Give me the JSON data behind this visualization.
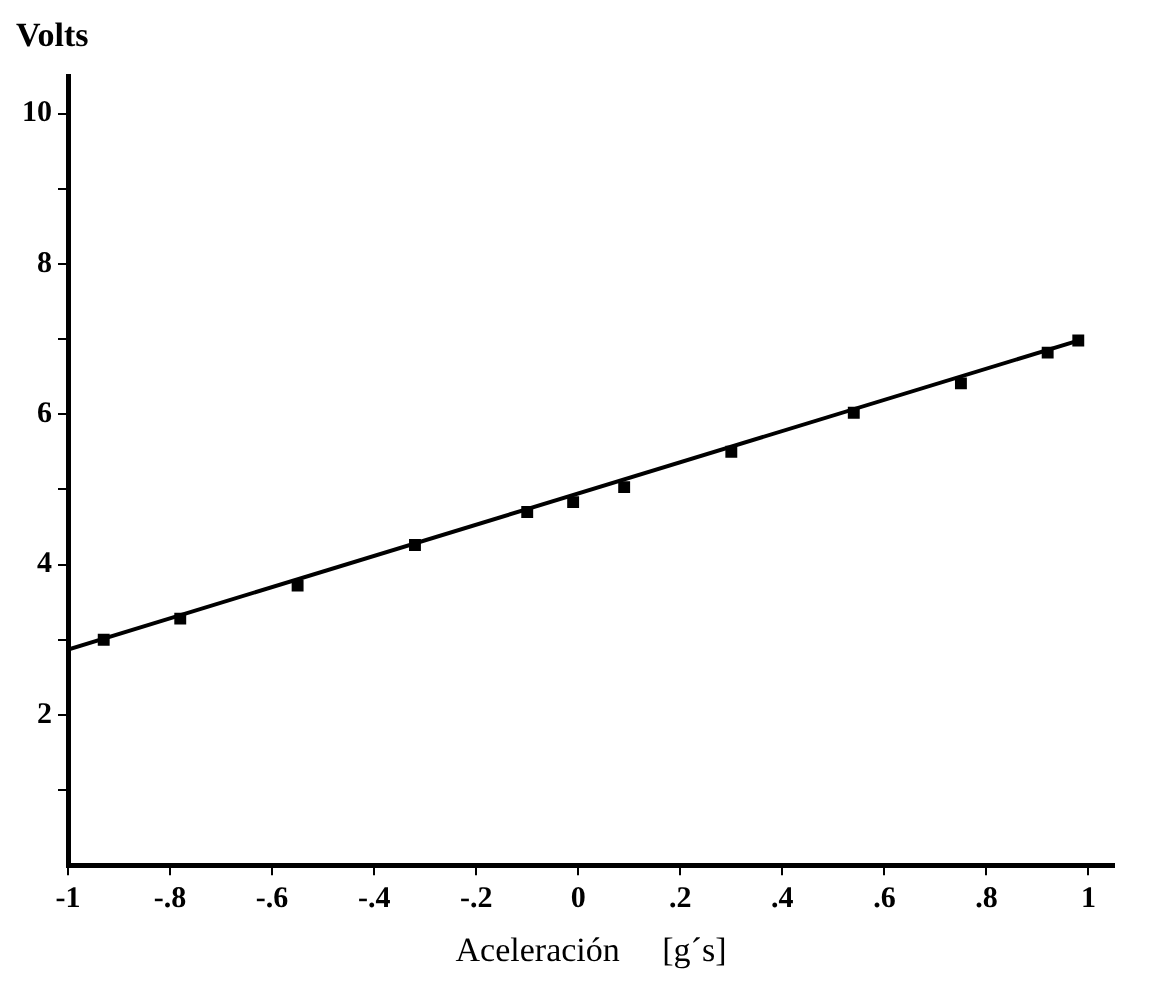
{
  "chart_data": {
    "type": "scatter",
    "xlabel": "Aceleración     [g´s]",
    "ylabel": "Volts",
    "xlim": [
      -1,
      1.05
    ],
    "ylim": [
      0,
      10.5
    ],
    "xticks": [
      -1,
      {
        "value": -0.8,
        "label": "-.8"
      },
      {
        "value": -0.6,
        "label": "-.6"
      },
      {
        "value": -0.4,
        "label": "-.4"
      },
      {
        "value": -0.2,
        "label": "-.2"
      },
      0,
      {
        "value": 0.2,
        "label": ".2"
      },
      {
        "value": 0.4,
        "label": ".4"
      },
      {
        "value": 0.6,
        "label": ".6"
      },
      {
        "value": 0.8,
        "label": ".8"
      },
      1
    ],
    "yticks": [
      {
        "value": 1,
        "label": null
      },
      2,
      {
        "value": 3,
        "label": null
      },
      4,
      {
        "value": 5,
        "label": null
      },
      6,
      {
        "value": 7,
        "label": null
      },
      8,
      {
        "value": 9,
        "label": null
      },
      10
    ],
    "marker": "square",
    "grid": false,
    "legend": false,
    "series": [
      {
        "color": "#000000",
        "x": [
          -0.93,
          -0.78,
          -0.55,
          -0.32,
          -0.1,
          -0.01,
          0.09,
          0.3,
          0.54,
          0.75,
          0.92,
          0.98
        ],
        "values": [
          3.0,
          3.28,
          3.72,
          4.26,
          4.7,
          4.83,
          5.03,
          5.5,
          6.02,
          6.41,
          6.82,
          6.98
        ]
      },
      {
        "type": "line",
        "color": "#000000",
        "marker": "none",
        "line_style": "solid",
        "x": [
          -1,
          0.98
        ],
        "values": [
          2.87,
          6.98
        ]
      }
    ]
  }
}
